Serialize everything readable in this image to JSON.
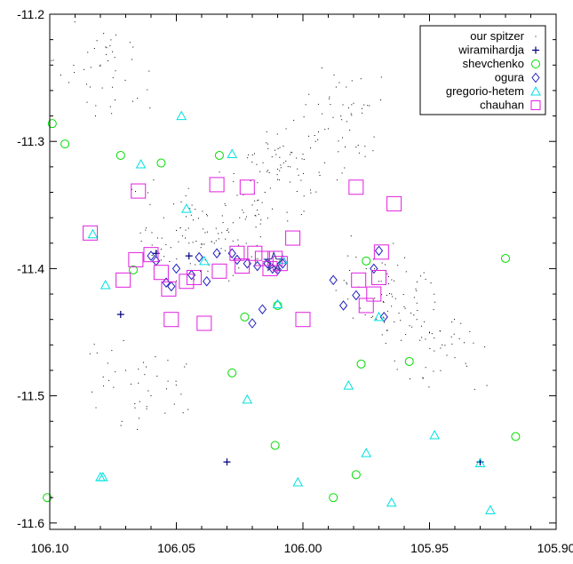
{
  "chart_data": {
    "type": "scatter",
    "title": "",
    "xlabel": "",
    "ylabel": "",
    "xlim": [
      106.1,
      105.9
    ],
    "ylim": [
      -11.605,
      -11.2
    ],
    "x_reversed": true,
    "x_ticks": [
      106.1,
      106.05,
      106.0,
      105.95,
      105.9
    ],
    "x_tick_labels": [
      "106.10",
      "106.05",
      "106.00",
      "105.95",
      "105.90"
    ],
    "y_ticks": [
      -11.2,
      -11.3,
      -11.4,
      -11.5,
      -11.6
    ],
    "y_tick_labels": [
      "-11.2",
      "-11.3",
      "-11.4",
      "-11.5",
      "-11.6"
    ],
    "legend_position": "top-right",
    "background_points_description": "our spitzer",
    "series": [
      {
        "name": "our spitzer",
        "marker": "dot",
        "color": "#000000",
        "x": [
          106.055,
          106.05,
          106.045,
          106.04,
          106.035,
          106.03,
          106.025,
          106.02,
          106.015,
          106.01,
          106.005,
          106.0,
          105.995,
          105.99,
          105.985,
          105.98,
          105.975,
          105.97,
          105.965,
          105.96,
          105.955,
          105.95,
          105.945,
          105.94,
          106.07,
          106.065,
          106.06,
          106.075,
          106.08,
          106.085
        ],
        "y": [
          -11.36,
          -11.37,
          -11.38,
          -11.39,
          -11.38,
          -11.37,
          -11.36,
          -11.35,
          -11.34,
          -11.33,
          -11.32,
          -11.31,
          -11.3,
          -11.29,
          -11.28,
          -11.27,
          -11.4,
          -11.41,
          -11.42,
          -11.43,
          -11.44,
          -11.45,
          -11.46,
          -11.47,
          -11.48,
          -11.49,
          -11.5,
          -11.25,
          -11.24,
          -11.23
        ]
      },
      {
        "name": "wiramihardja",
        "marker": "plus",
        "color": "#000080",
        "x": [
          106.072,
          106.03,
          105.93,
          106.058,
          106.045
        ],
        "y": [
          -11.436,
          -11.552,
          -11.552,
          -11.388,
          -11.39
        ]
      },
      {
        "name": "shevchenko",
        "marker": "circle",
        "color": "#00dd00",
        "x": [
          106.099,
          106.094,
          106.067,
          106.056,
          106.033,
          106.028,
          106.023,
          106.011,
          106.01,
          105.988,
          105.979,
          105.977,
          105.975,
          105.958,
          105.92,
          105.916,
          106.072,
          106.101
        ],
        "y": [
          -11.286,
          -11.302,
          -11.401,
          -11.317,
          -11.311,
          -11.482,
          -11.438,
          -11.539,
          -11.429,
          -11.58,
          -11.562,
          -11.475,
          -11.394,
          -11.473,
          -11.392,
          -11.532,
          -11.311,
          -11.58
        ]
      },
      {
        "name": "ogura",
        "marker": "diamond",
        "color": "#2020c0",
        "x": [
          106.06,
          106.058,
          106.054,
          106.052,
          106.05,
          106.044,
          106.041,
          106.038,
          106.034,
          106.028,
          106.026,
          106.022,
          106.018,
          106.014,
          106.012,
          106.01,
          106.008,
          105.988,
          105.984,
          105.979,
          105.972,
          105.97,
          105.968,
          106.016,
          106.02
        ],
        "y": [
          -11.39,
          -11.394,
          -11.411,
          -11.414,
          -11.4,
          -11.405,
          -11.391,
          -11.41,
          -11.388,
          -11.388,
          -11.393,
          -11.396,
          -11.398,
          -11.396,
          -11.4,
          -11.401,
          -11.396,
          -11.409,
          -11.429,
          -11.421,
          -11.4,
          -11.386,
          -11.438,
          -11.432,
          -11.443
        ]
      },
      {
        "name": "gregorio-hetem",
        "marker": "triangle",
        "color": "#00e0e0",
        "x": [
          106.083,
          106.078,
          106.048,
          106.046,
          106.028,
          106.022,
          106.008,
          106.002,
          105.982,
          105.975,
          105.965,
          105.948,
          105.93,
          105.926,
          105.97,
          106.079,
          106.08,
          106.039,
          106.01,
          106.064
        ],
        "y": [
          -11.373,
          -11.413,
          -11.28,
          -11.353,
          -11.31,
          -11.503,
          -11.393,
          -11.568,
          -11.492,
          -11.545,
          -11.584,
          -11.531,
          -11.553,
          -11.59,
          -11.438,
          -11.564,
          -11.564,
          -11.394,
          -11.428,
          -11.318
        ]
      },
      {
        "name": "chauhan",
        "marker": "square",
        "color": "#e020e0",
        "x": [
          106.084,
          106.071,
          106.066,
          106.06,
          106.056,
          106.053,
          106.052,
          106.043,
          106.034,
          106.033,
          106.026,
          106.024,
          106.022,
          106.019,
          106.016,
          106.013,
          106.011,
          106.009,
          106.004,
          105.979,
          105.978,
          105.975,
          105.972,
          105.97,
          105.969,
          105.964,
          106.065,
          106.046,
          106.039,
          106.0
        ],
        "y": [
          -11.372,
          -11.409,
          -11.393,
          -11.389,
          -11.403,
          -11.416,
          -11.44,
          -11.407,
          -11.334,
          -11.402,
          -11.388,
          -11.398,
          -11.336,
          -11.388,
          -11.392,
          -11.4,
          -11.392,
          -11.396,
          -11.376,
          -11.336,
          -11.409,
          -11.429,
          -11.42,
          -11.407,
          -11.387,
          -11.349,
          -11.339,
          -11.41,
          -11.443,
          -11.44
        ]
      }
    ],
    "special_markers": [
      {
        "name": "star",
        "marker": "star",
        "color": "#4040a0",
        "x": 106.0115,
        "y": -11.395
      }
    ]
  }
}
